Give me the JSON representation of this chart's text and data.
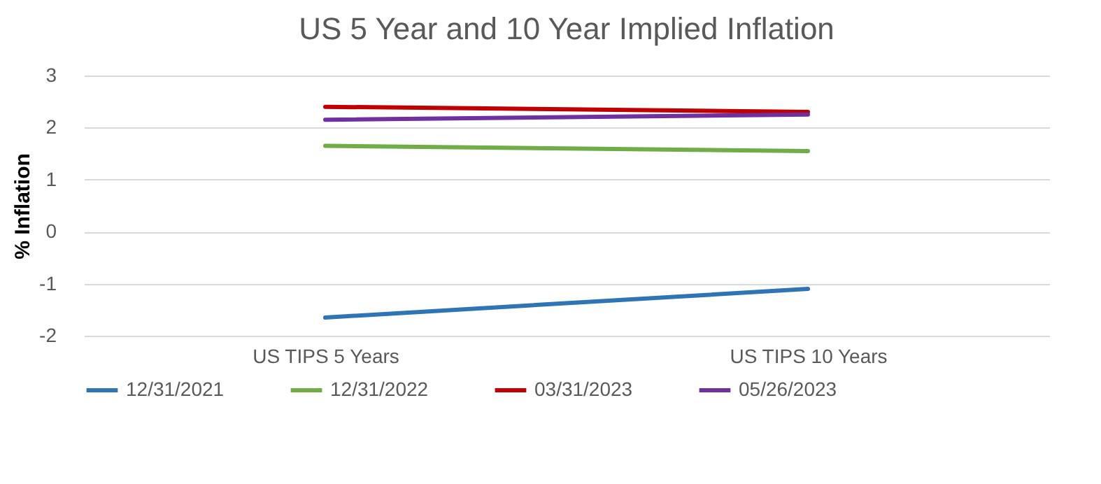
{
  "chart_data": {
    "type": "line",
    "title": "US 5 Year and 10 Year Implied Inflation",
    "ylabel": "% Inflation",
    "categories": [
      "US TIPS 5 Years",
      "US TIPS 10 Years"
    ],
    "series": [
      {
        "name": "12/31/2021",
        "color": "#2e75b6",
        "values": [
          -1.65,
          -1.1
        ]
      },
      {
        "name": "12/31/2022",
        "color": "#70ad47",
        "values": [
          1.65,
          1.55
        ]
      },
      {
        "name": "03/31/2023",
        "color": "#c00000",
        "values": [
          2.4,
          2.3
        ]
      },
      {
        "name": "05/26/2023",
        "color": "#7030a0",
        "values": [
          2.15,
          2.25
        ]
      }
    ],
    "ylim": [
      -2,
      3
    ],
    "yticks": [
      -2,
      -1,
      0,
      1,
      2,
      3
    ],
    "grid": "y",
    "legend": "bottom",
    "marker": "none",
    "line_style": "solid"
  }
}
